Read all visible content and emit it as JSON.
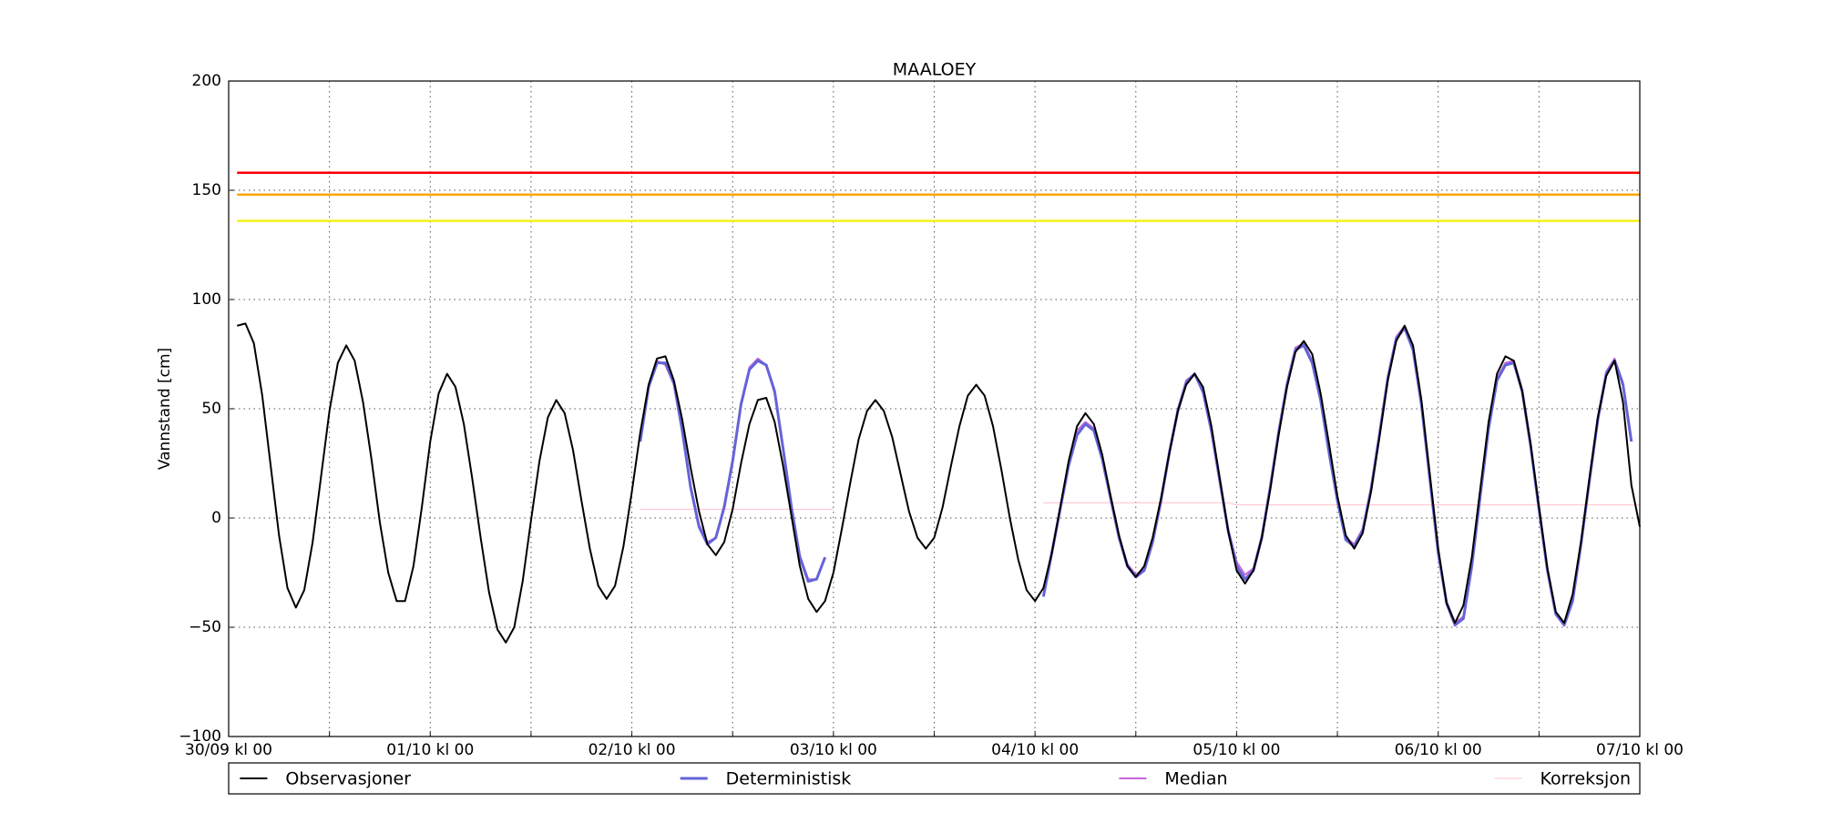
{
  "chart_data": {
    "type": "line",
    "title": "MAALOEY",
    "y_label": "Vannstand [cm]",
    "x": [
      1,
      2,
      3,
      4,
      5,
      6,
      7,
      8,
      9,
      10,
      11,
      12,
      13,
      14,
      15,
      16,
      17,
      18,
      19,
      20,
      21,
      22,
      23,
      24,
      25,
      26,
      27,
      28,
      29,
      30,
      31,
      32,
      33,
      34,
      35,
      36,
      37,
      38,
      39,
      40,
      41,
      42,
      43,
      44,
      45,
      46,
      47,
      48,
      49,
      50,
      51,
      52,
      53,
      54,
      55,
      56,
      57,
      58,
      59,
      60,
      61,
      62,
      63,
      64,
      65,
      66,
      67,
      68,
      69,
      70,
      71,
      72,
      73,
      74,
      75,
      76,
      77,
      78,
      79,
      80,
      81,
      82,
      83,
      84,
      85,
      86,
      87,
      88,
      89,
      90,
      91,
      92,
      93,
      94,
      95,
      96,
      97,
      98,
      99,
      100,
      101,
      102,
      103,
      104,
      105,
      106,
      107,
      108,
      109,
      110,
      111,
      112,
      113,
      114,
      115,
      116,
      117,
      118,
      119,
      120,
      121,
      122,
      123,
      124,
      125,
      126,
      127,
      128,
      129,
      130,
      131,
      132,
      133,
      134,
      135,
      136,
      137,
      138,
      139,
      140,
      141,
      142,
      143,
      144,
      145,
      146,
      147,
      148,
      149,
      150,
      151,
      152,
      153,
      154,
      155,
      156,
      157,
      158,
      159,
      160,
      161,
      162,
      163,
      164,
      165,
      166,
      167,
      168
    ],
    "series": [
      {
        "name": "Observasjoner",
        "color": "#000000",
        "width": 2,
        "values": [
          88,
          89,
          80,
          56,
          24,
          -8,
          -32,
          -41,
          -33,
          -11,
          19,
          49,
          71,
          79,
          72,
          53,
          27,
          -2,
          -25,
          -38,
          -38,
          -22,
          5,
          35,
          57,
          66,
          60,
          43,
          18,
          -9,
          -34,
          -51,
          -57,
          -50,
          -29,
          -1,
          26,
          46,
          54,
          48,
          31,
          8,
          -14,
          -31,
          -37,
          -31,
          -13,
          12,
          39,
          61,
          73,
          74,
          63,
          45,
          23,
          3,
          -12,
          -17,
          -11,
          4,
          25,
          43,
          54,
          55,
          44,
          24,
          1,
          -22,
          -37,
          -43,
          -38,
          -25,
          -5,
          16,
          36,
          49,
          54,
          49,
          37,
          20,
          3,
          -9,
          -14,
          -9,
          5,
          24,
          42,
          56,
          61,
          56,
          42,
          22,
          0,
          -19,
          -33,
          -38,
          -32,
          -16,
          5,
          26,
          42,
          48,
          43,
          29,
          10,
          -8,
          -22,
          -27,
          -22,
          -9,
          9,
          30,
          49,
          61,
          66,
          60,
          42,
          18,
          -6,
          -24,
          -30,
          -24,
          -9,
          13,
          38,
          60,
          76,
          81,
          75,
          57,
          34,
          10,
          -8,
          -14,
          -7,
          12,
          37,
          63,
          81,
          88,
          79,
          54,
          20,
          -14,
          -39,
          -48,
          -40,
          -18,
          13,
          44,
          66,
          74,
          72,
          58,
          34,
          5,
          -23,
          -43,
          -48,
          -35,
          -11,
          18,
          46,
          65,
          72,
          53,
          15,
          -4
        ]
      },
      {
        "name": "Deterministisk",
        "color": "#6464d8",
        "width": 3,
        "values": [
          null,
          null,
          null,
          null,
          null,
          null,
          null,
          null,
          null,
          null,
          null,
          null,
          null,
          null,
          null,
          null,
          null,
          null,
          null,
          null,
          null,
          null,
          null,
          null,
          null,
          null,
          null,
          null,
          null,
          null,
          null,
          null,
          null,
          null,
          null,
          null,
          null,
          null,
          null,
          null,
          null,
          null,
          null,
          null,
          null,
          null,
          null,
          null,
          35,
          60,
          71,
          71,
          62,
          40,
          14,
          -4,
          -12,
          -9,
          5,
          26,
          52,
          68,
          72,
          70,
          58,
          32,
          5,
          -18,
          -29,
          -28,
          -18,
          null,
          null,
          null,
          null,
          null,
          null,
          null,
          null,
          null,
          null,
          null,
          null,
          null,
          null,
          null,
          null,
          null,
          null,
          null,
          null,
          null,
          null,
          null,
          null,
          null,
          -36,
          -16,
          4,
          24,
          38,
          43,
          40,
          27,
          9,
          -9,
          -22,
          -27,
          -24,
          -11,
          8,
          30,
          49,
          62,
          66,
          58,
          40,
          17,
          -6,
          -22,
          -28,
          -24,
          -9,
          14,
          39,
          61,
          77,
          79,
          71,
          54,
          30,
          8,
          -10,
          -13,
          -6,
          13,
          38,
          64,
          82,
          87,
          77,
          52,
          18,
          -16,
          -39,
          -49,
          -46,
          -22,
          10,
          41,
          63,
          70,
          71,
          58,
          33,
          4,
          -24,
          -44,
          -49,
          -38,
          -12,
          17,
          45,
          66,
          72,
          61,
          35,
          null
        ]
      },
      {
        "name": "Median",
        "color": "#c466d8",
        "width": 2,
        "values": [
          null,
          null,
          null,
          null,
          null,
          null,
          null,
          null,
          null,
          null,
          null,
          null,
          null,
          null,
          null,
          null,
          null,
          null,
          null,
          null,
          null,
          null,
          null,
          null,
          null,
          null,
          null,
          null,
          null,
          null,
          null,
          null,
          null,
          null,
          null,
          null,
          null,
          null,
          null,
          null,
          null,
          null,
          null,
          null,
          null,
          null,
          null,
          null,
          36,
          61,
          72,
          70,
          61,
          40,
          15,
          -3,
          -11,
          -9,
          6,
          27,
          53,
          69,
          73,
          70,
          57,
          31,
          5,
          -17,
          -28,
          -28,
          -18,
          null,
          null,
          null,
          null,
          null,
          null,
          null,
          null,
          null,
          null,
          null,
          null,
          null,
          null,
          null,
          null,
          null,
          null,
          null,
          null,
          null,
          null,
          null,
          null,
          null,
          -35,
          -15,
          5,
          25,
          40,
          44,
          41,
          28,
          10,
          -8,
          -21,
          -26,
          -23,
          -10,
          9,
          31,
          50,
          63,
          66,
          57,
          39,
          16,
          -5,
          -20,
          -26,
          -23,
          -8,
          15,
          40,
          62,
          78,
          80,
          72,
          55,
          31,
          9,
          -9,
          -12,
          -5,
          14,
          39,
          65,
          83,
          88,
          78,
          53,
          19,
          -15,
          -38,
          -48,
          -45,
          -21,
          11,
          42,
          64,
          71,
          72,
          59,
          34,
          5,
          -23,
          -43,
          -48,
          -37,
          -11,
          18,
          46,
          67,
          73,
          62,
          36,
          null
        ]
      },
      {
        "name": "Korreksjon",
        "color": "#ffc0cb",
        "width": 1,
        "values": [
          null,
          null,
          null,
          null,
          null,
          null,
          null,
          null,
          null,
          null,
          null,
          null,
          null,
          null,
          null,
          null,
          null,
          null,
          null,
          null,
          null,
          null,
          null,
          null,
          null,
          null,
          null,
          null,
          null,
          null,
          null,
          null,
          null,
          null,
          null,
          null,
          null,
          null,
          null,
          null,
          null,
          null,
          null,
          null,
          null,
          null,
          null,
          null,
          4,
          4,
          4,
          4,
          4,
          4,
          4,
          4,
          4,
          4,
          4,
          4,
          4,
          4,
          4,
          4,
          4,
          4,
          4,
          4,
          4,
          4,
          4,
          4,
          null,
          null,
          null,
          null,
          null,
          null,
          null,
          null,
          null,
          null,
          null,
          null,
          null,
          null,
          null,
          null,
          null,
          null,
          null,
          null,
          null,
          null,
          null,
          null,
          7,
          7,
          7,
          7,
          7,
          7,
          7,
          7,
          7,
          7,
          7,
          7,
          7,
          7,
          7,
          7,
          7,
          7,
          7,
          7,
          7,
          7,
          7,
          6,
          6,
          6,
          6,
          6,
          6,
          6,
          6,
          6,
          6,
          6,
          6,
          6,
          6,
          6,
          6,
          6,
          6,
          6,
          6,
          6,
          6,
          6,
          6,
          6,
          6,
          6,
          6,
          6,
          6,
          6,
          6,
          6,
          6,
          6,
          6,
          6,
          6,
          6,
          6,
          6,
          6,
          6,
          6,
          6,
          6,
          6,
          6,
          6
        ]
      }
    ],
    "levels": [
      {
        "value": 158,
        "color": "#ff0000"
      },
      {
        "value": 148,
        "color": "#ffa500"
      },
      {
        "value": 136,
        "color": "#f2f21a"
      }
    ],
    "xlim": [
      0,
      168
    ],
    "xticks": [
      {
        "value": 0,
        "label": "30/09 kl 00"
      },
      {
        "value": 24,
        "label": "01/10 kl 00"
      },
      {
        "value": 48,
        "label": "02/10 kl 00"
      },
      {
        "value": 72,
        "label": "03/10 kl 00"
      },
      {
        "value": 96,
        "label": "04/10 kl 00"
      },
      {
        "value": 120,
        "label": "05/10 kl 00"
      },
      {
        "value": 144,
        "label": "06/10 kl 00"
      },
      {
        "value": 168,
        "label": "07/10 kl 00"
      }
    ],
    "xminorticks": [
      12,
      36,
      60,
      84,
      108,
      132,
      156
    ],
    "ylim": [
      -100,
      200
    ],
    "yticks": [
      {
        "value": -100,
        "label": "−100"
      },
      {
        "value": -50,
        "label": "−50"
      },
      0,
      50,
      100,
      150,
      200
    ],
    "grid": true,
    "legend": "below"
  }
}
